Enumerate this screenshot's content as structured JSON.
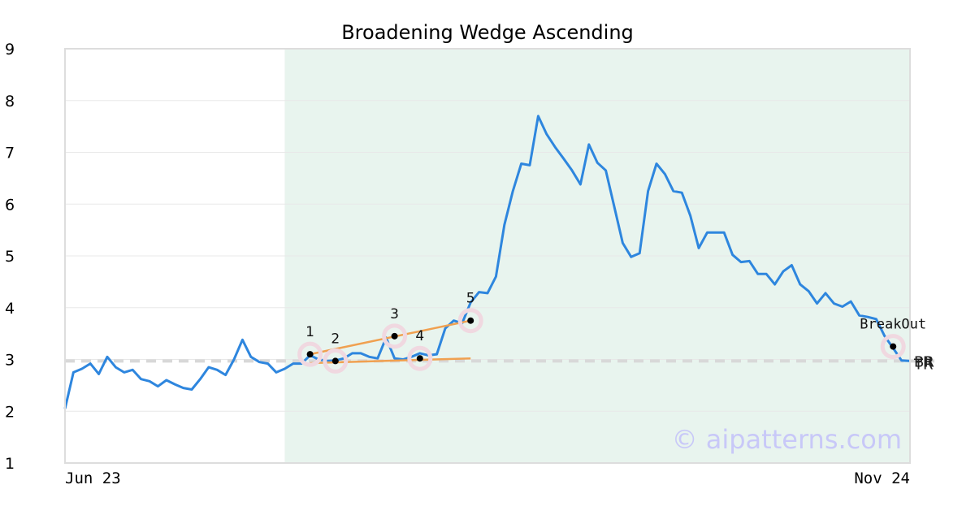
{
  "chart_data": {
    "type": "line",
    "title": "Broadening Wedge Ascending",
    "xlabel": "",
    "ylabel": "",
    "ylim": [
      1,
      9
    ],
    "y_ticks": [
      "1",
      "2",
      "3",
      "4",
      "5",
      "6",
      "7",
      "8",
      "9"
    ],
    "x_tick_labels": [
      "Jun 23",
      "Nov 24"
    ],
    "grid": true,
    "watermark": "© aipatterns.com",
    "colors": {
      "price_line": "#2e86de",
      "wedge_lines": "#f0a050",
      "shade": "#e8f4ee",
      "pivot_halo": "#f0d8e0",
      "reference_line": "#d8d8d8",
      "watermark": "#c8c8f8"
    },
    "highlight_range_index": [
      26,
      100
    ],
    "reference_level": {
      "value": 2.97,
      "labels": [
        "BR",
        "PR",
        "TR"
      ]
    },
    "series": [
      {
        "values": [
          2.05,
          2.75,
          2.82,
          2.92,
          2.72,
          3.05,
          2.85,
          2.75,
          2.8,
          2.62,
          2.58,
          2.48,
          2.6,
          2.52,
          2.45,
          2.42,
          2.62,
          2.85,
          2.8,
          2.7,
          3.0,
          3.38,
          3.05,
          2.95,
          2.92,
          2.75,
          2.82,
          2.92,
          2.92,
          3.08,
          3.0,
          2.97,
          2.98,
          3.02,
          3.12,
          3.12,
          3.05,
          3.02,
          3.42,
          3.02,
          3.0,
          3.05,
          3.12,
          3.08,
          3.1,
          3.6,
          3.75,
          3.7,
          4.1,
          4.3,
          4.28,
          4.6,
          5.6,
          6.25,
          6.78,
          6.75,
          7.7,
          7.35,
          7.1,
          6.88,
          6.65,
          6.38,
          7.15,
          6.8,
          6.65,
          5.95,
          5.25,
          4.98,
          5.05,
          6.25,
          6.78,
          6.58,
          6.25,
          6.22,
          5.78,
          5.15,
          5.45,
          5.45,
          5.45,
          5.02,
          4.88,
          4.9,
          4.65,
          4.65,
          4.45,
          4.7,
          4.82,
          4.45,
          4.32,
          4.08,
          4.28,
          4.08,
          4.02,
          4.12,
          3.85,
          3.82,
          3.78,
          3.45,
          3.22,
          2.98,
          2.97
        ]
      }
    ],
    "wedge_lines": [
      {
        "from": [
          29,
          3.1
        ],
        "to": [
          48,
          3.75
        ]
      },
      {
        "from": [
          29,
          2.93
        ],
        "to": [
          48,
          3.02
        ]
      }
    ],
    "pivots": [
      {
        "label": "1",
        "x": 29,
        "y": 3.1
      },
      {
        "label": "2",
        "x": 32,
        "y": 2.97
      },
      {
        "label": "3",
        "x": 39,
        "y": 3.45
      },
      {
        "label": "4",
        "x": 42,
        "y": 3.02
      },
      {
        "label": "5",
        "x": 48,
        "y": 3.75
      }
    ],
    "breakout": {
      "label": "BreakOut",
      "x": 98,
      "y": 3.25
    }
  }
}
